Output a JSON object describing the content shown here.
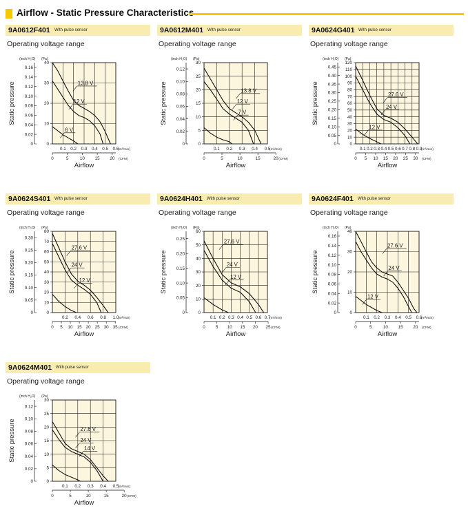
{
  "header": {
    "title": "Airflow - Static Pressure Characteristics"
  },
  "charts": [
    {
      "type": "line",
      "model": "9A0612F401",
      "sensor": "With pulse sensor",
      "subtitle": "Operating voltage range",
      "ylabel": "Static pressure",
      "xlabel": "Airflow",
      "y_unit_in": "(inch H₂O)",
      "y_unit_pa": "(Pa)",
      "x_unit_m3": "(m³/min)",
      "x_unit_cfm": "(CFM)",
      "pa_max": 40,
      "pa_ticks": [
        0,
        10,
        20,
        30,
        40
      ],
      "in_ticks": [
        "0",
        "0.02",
        "0.04",
        "0.06",
        "0.08",
        "0.10",
        "0.12",
        "0.14",
        "0.16"
      ],
      "m3_max": 0.6,
      "m3_ticks": [
        "0.1",
        "0.2",
        "0.3",
        "0.4",
        "0.5",
        "0.6"
      ],
      "cfm_max": 21.19,
      "cfm_ticks": [
        "0",
        "5",
        "10",
        "15",
        "20"
      ],
      "series": [
        {
          "name": "13.8 V",
          "x": [
            0,
            0.05,
            0.1,
            0.15,
            0.2,
            0.25,
            0.3,
            0.35,
            0.4,
            0.45,
            0.5,
            0.55
          ],
          "y": [
            40,
            36,
            31,
            26,
            21.5,
            19,
            17.5,
            16,
            14,
            11,
            6,
            0
          ]
        },
        {
          "name": "12 V",
          "x": [
            0,
            0.05,
            0.1,
            0.15,
            0.2,
            0.25,
            0.3,
            0.35,
            0.4,
            0.45,
            0.48
          ],
          "y": [
            31,
            27,
            23,
            19,
            16,
            14,
            13,
            11.5,
            9,
            5,
            0
          ]
        },
        {
          "name": "6 V",
          "x": [
            0,
            0.05,
            0.1,
            0.15,
            0.2,
            0.24
          ],
          "y": [
            8.5,
            6.5,
            4.5,
            3,
            1.5,
            0
          ]
        }
      ],
      "labels": [
        {
          "text": "13.8 V",
          "x": 0.24,
          "y": 29
        },
        {
          "text": "12 V",
          "x": 0.2,
          "y": 20
        },
        {
          "text": "6 V",
          "x": 0.12,
          "y": 6
        }
      ]
    },
    {
      "type": "line",
      "model": "9A0612M401",
      "sensor": "With pulse sensor",
      "subtitle": "Operating voltage range",
      "ylabel": "Static pressure",
      "xlabel": "Airflow",
      "y_unit_in": "(inch H₂O)",
      "y_unit_pa": "(Pa)",
      "x_unit_m3": "(m³/min)",
      "x_unit_cfm": "(CFM)",
      "pa_max": 30,
      "pa_ticks": [
        0,
        5,
        10,
        15,
        20,
        25,
        30
      ],
      "in_ticks": [
        "0",
        "0.02",
        "0.04",
        "0.06",
        "0.08",
        "0.10",
        "0.12"
      ],
      "m3_max": 0.5,
      "m3_ticks": [
        "0.1",
        "0.2",
        "0.3",
        "0.4",
        "0.5"
      ],
      "cfm_max": 17.66,
      "cfm_ticks": [
        "0",
        "5",
        "10",
        "15",
        "20"
      ],
      "series": [
        {
          "name": "13.8 V",
          "x": [
            0,
            0.05,
            0.1,
            0.15,
            0.2,
            0.25,
            0.3,
            0.35,
            0.4,
            0.45
          ],
          "y": [
            28,
            24,
            20,
            16,
            13,
            11.5,
            10,
            8,
            5,
            0
          ]
        },
        {
          "name": "12 V",
          "x": [
            0,
            0.05,
            0.1,
            0.15,
            0.2,
            0.25,
            0.3,
            0.35,
            0.39
          ],
          "y": [
            23,
            20,
            16.5,
            13,
            11,
            9.5,
            8,
            5,
            0
          ]
        },
        {
          "name": "7 V",
          "x": [
            0,
            0.05,
            0.1,
            0.15,
            0.2,
            0.22
          ],
          "y": [
            6,
            4,
            2.5,
            1.5,
            0.8,
            0
          ]
        }
      ],
      "labels": [
        {
          "text": "13.8 V",
          "x": 0.29,
          "y": 19
        },
        {
          "text": "12 V",
          "x": 0.26,
          "y": 15
        },
        {
          "text": "7 V",
          "x": 0.27,
          "y": 11
        }
      ]
    },
    {
      "type": "line",
      "model": "9A0624G401",
      "sensor": "With pulse sensor",
      "subtitle": "Operating voltage range",
      "ylabel": "Static pressure",
      "xlabel": "Airflow",
      "y_unit_in": "(inch H₂O)",
      "y_unit_pa": "(Pa)",
      "x_unit_m3": "(m³/min)",
      "x_unit_cfm": "(CFM)",
      "pa_max": 120,
      "pa_ticks": [
        0,
        10,
        20,
        30,
        40,
        50,
        60,
        70,
        80,
        90,
        100,
        110,
        120
      ],
      "in_ticks": [
        "0",
        "0.05",
        "0.10",
        "0.15",
        "0.20",
        "0.25",
        "0.30",
        "0.35",
        "0.40",
        "0.45"
      ],
      "m3_max": 0.9,
      "m3_ticks": [
        "0.1",
        "0.2",
        "0.3",
        "0.4",
        "0.5",
        "0.6",
        "0.7",
        "0.8",
        "0.9"
      ],
      "cfm_max": 31.78,
      "cfm_ticks": [
        "0",
        "5",
        "10",
        "15",
        "20",
        "25",
        "30"
      ],
      "series": [
        {
          "name": "27.6 V",
          "x": [
            0,
            0.1,
            0.2,
            0.3,
            0.4,
            0.5,
            0.6,
            0.7,
            0.8,
            0.88
          ],
          "y": [
            115,
            94,
            72,
            52,
            42,
            38,
            32,
            22,
            10,
            0
          ]
        },
        {
          "name": "24 V",
          "x": [
            0,
            0.1,
            0.2,
            0.3,
            0.4,
            0.5,
            0.6,
            0.7,
            0.77
          ],
          "y": [
            100,
            80,
            60,
            44,
            36,
            32,
            24,
            12,
            0
          ]
        },
        {
          "name": "12 V",
          "x": [
            0,
            0.1,
            0.2,
            0.3,
            0.36
          ],
          "y": [
            22,
            14,
            8,
            3,
            0
          ]
        }
      ],
      "labels": [
        {
          "text": "27.6 V",
          "x": 0.46,
          "y": 70
        },
        {
          "text": "24 V",
          "x": 0.43,
          "y": 52
        },
        {
          "text": "12 V",
          "x": 0.19,
          "y": 22
        }
      ]
    },
    {
      "type": "line",
      "model": "9A0624S401",
      "sensor": "With pulse sensor",
      "subtitle": "Operating voltage range",
      "ylabel": "Static pressure",
      "xlabel": "Airflow",
      "y_unit_in": "(inch H₂O)",
      "y_unit_pa": "(Pa)",
      "x_unit_m3": "(m³/min)",
      "x_unit_cfm": "(CFM)",
      "pa_max": 80,
      "pa_ticks": [
        0,
        10,
        20,
        30,
        40,
        50,
        60,
        70,
        80
      ],
      "in_ticks": [
        "0",
        "0.05",
        "0.10",
        "0.15",
        "0.20",
        "0.25",
        "0.30"
      ],
      "m3_max": 1.0,
      "m3_ticks": [
        "0.2",
        "0.4",
        "0.6",
        "0.8",
        "1.0"
      ],
      "cfm_max": 35.31,
      "cfm_ticks": [
        "0",
        "5",
        "10",
        "15",
        "20",
        "25",
        "30",
        "35"
      ],
      "series": [
        {
          "name": "27.6 V",
          "x": [
            0,
            0.1,
            0.2,
            0.3,
            0.4,
            0.5,
            0.6,
            0.7,
            0.8,
            0.88
          ],
          "y": [
            78,
            64,
            50,
            38,
            31,
            27,
            22,
            15,
            7,
            0
          ]
        },
        {
          "name": "24 V",
          "x": [
            0,
            0.1,
            0.2,
            0.3,
            0.4,
            0.5,
            0.6,
            0.7,
            0.77
          ],
          "y": [
            68,
            55,
            42,
            32,
            27,
            23,
            18,
            10,
            0
          ]
        },
        {
          "name": "12 V",
          "x": [
            0,
            0.1,
            0.2,
            0.3,
            0.38
          ],
          "y": [
            18,
            11,
            6,
            2,
            0
          ]
        }
      ],
      "labels": [
        {
          "text": "27.6 V",
          "x": 0.3,
          "y": 62
        },
        {
          "text": "24 V",
          "x": 0.3,
          "y": 45
        },
        {
          "text": "12 V",
          "x": 0.42,
          "y": 30
        }
      ]
    },
    {
      "type": "line",
      "model": "9A0624H401",
      "sensor": "With pulse sensor",
      "subtitle": "Operating voltage range",
      "ylabel": "Static pressure",
      "xlabel": "Airflow",
      "y_unit_in": "(inch H₂O)",
      "y_unit_pa": "(Pa)",
      "x_unit_m3": "(m³/min)",
      "x_unit_cfm": "(CFM)",
      "pa_max": 60,
      "pa_ticks": [
        0,
        10,
        20,
        30,
        40,
        50,
        60
      ],
      "in_ticks": [
        "0",
        "0.05",
        "0.10",
        "0.15",
        "0.20",
        "0.25"
      ],
      "m3_max": 0.7,
      "m3_ticks": [
        "0.1",
        "0.2",
        "0.3",
        "0.4",
        "0.5",
        "0.6",
        "0.7"
      ],
      "cfm_max": 24.72,
      "cfm_ticks": [
        "0",
        "5",
        "10",
        "15",
        "20",
        "25"
      ],
      "series": [
        {
          "name": "27.6 V",
          "x": [
            0,
            0.1,
            0.2,
            0.3,
            0.4,
            0.5,
            0.6,
            0.66
          ],
          "y": [
            53,
            40,
            28,
            22,
            19,
            14,
            6,
            0
          ]
        },
        {
          "name": "24 V",
          "x": [
            0,
            0.1,
            0.2,
            0.3,
            0.4,
            0.5,
            0.57
          ],
          "y": [
            46,
            34,
            24,
            18,
            15,
            8,
            0
          ]
        },
        {
          "name": "12 V",
          "x": [
            0,
            0.1,
            0.2,
            0.27
          ],
          "y": [
            11,
            6,
            2,
            0
          ]
        }
      ],
      "labels": [
        {
          "text": "27.6 V",
          "x": 0.22,
          "y": 51
        },
        {
          "text": "24 V",
          "x": 0.25,
          "y": 34
        },
        {
          "text": "12 V",
          "x": 0.29,
          "y": 25
        }
      ]
    },
    {
      "type": "line",
      "model": "9A0624F401",
      "sensor": "With pulse sensor",
      "subtitle": "Operating voltage range",
      "ylabel": "Static pressure",
      "xlabel": "Airflow",
      "y_unit_in": "(inch H₂O)",
      "y_unit_pa": "(Pa)",
      "x_unit_m3": "(m³/min)",
      "x_unit_cfm": "(CFM)",
      "pa_max": 40,
      "pa_ticks": [
        0,
        10,
        20,
        30,
        40
      ],
      "in_ticks": [
        "0",
        "0.02",
        "0.04",
        "0.06",
        "0.08",
        "0.10",
        "0.12",
        "0.14",
        "0.16"
      ],
      "m3_max": 0.6,
      "m3_ticks": [
        "0.1",
        "0.2",
        "0.3",
        "0.4",
        "0.5",
        "0.6"
      ],
      "cfm_max": 21.19,
      "cfm_ticks": [
        "0",
        "5",
        "10",
        "15",
        "20"
      ],
      "series": [
        {
          "name": "27.6 V",
          "x": [
            0,
            0.05,
            0.1,
            0.15,
            0.2,
            0.25,
            0.3,
            0.35,
            0.4,
            0.45,
            0.5,
            0.55,
            0.58
          ],
          "y": [
            40,
            35,
            30,
            25,
            22,
            20,
            19,
            18,
            15,
            11,
            7,
            2,
            0
          ]
        },
        {
          "name": "24 V",
          "x": [
            0,
            0.05,
            0.1,
            0.15,
            0.2,
            0.25,
            0.3,
            0.35,
            0.4,
            0.45,
            0.5,
            0.53
          ],
          "y": [
            35,
            30,
            26,
            22,
            19,
            17.5,
            16.5,
            15,
            12,
            8,
            3,
            0
          ]
        },
        {
          "name": "12 V",
          "x": [
            0,
            0.05,
            0.1,
            0.15,
            0.2,
            0.25
          ],
          "y": [
            8,
            6,
            4,
            2.5,
            1,
            0
          ]
        }
      ],
      "labels": [
        {
          "text": "27.6 V",
          "x": 0.3,
          "y": 32
        },
        {
          "text": "24 V",
          "x": 0.31,
          "y": 21
        },
        {
          "text": "12 V",
          "x": 0.11,
          "y": 7
        }
      ]
    },
    {
      "type": "line",
      "model": "9A0624M401",
      "sensor": "With pulse sensor",
      "subtitle": "Operating voltage range",
      "ylabel": "Static pressure",
      "xlabel": "Airflow",
      "y_unit_in": "(inch H₂O)",
      "y_unit_pa": "(Pa)",
      "x_unit_m3": "(m³/min)",
      "x_unit_cfm": "(CFM)",
      "pa_max": 30,
      "pa_ticks": [
        0,
        5,
        10,
        15,
        20,
        25,
        30
      ],
      "in_ticks": [
        "0",
        "0.02",
        "0.04",
        "0.06",
        "0.08",
        "0.10",
        "0.12"
      ],
      "m3_max": 0.5,
      "m3_ticks": [
        "0.1",
        "0.2",
        "0.3",
        "0.4",
        "0.5"
      ],
      "cfm_max": 17.66,
      "cfm_ticks": [
        "0",
        "5",
        "10",
        "15",
        "20"
      ],
      "series": [
        {
          "name": "27.6 V",
          "x": [
            0,
            0.05,
            0.1,
            0.15,
            0.2,
            0.25,
            0.3,
            0.35,
            0.4,
            0.44
          ],
          "y": [
            22,
            18,
            14,
            12,
            11,
            10,
            8,
            5,
            2,
            0
          ]
        },
        {
          "name": "24 V",
          "x": [
            0,
            0.05,
            0.1,
            0.15,
            0.2,
            0.25,
            0.3,
            0.35,
            0.4
          ],
          "y": [
            19,
            15.5,
            12.5,
            11,
            10,
            9,
            7,
            4,
            0
          ]
        },
        {
          "name": "14 V",
          "x": [
            0,
            0.05,
            0.1,
            0.15,
            0.2,
            0.22
          ],
          "y": [
            6,
            4,
            2.5,
            1.5,
            0.5,
            0
          ]
        }
      ],
      "labels": [
        {
          "text": "27.6 V",
          "x": 0.22,
          "y": 18.5
        },
        {
          "text": "24 V",
          "x": 0.22,
          "y": 14.5
        },
        {
          "text": "14 V",
          "x": 0.25,
          "y": 11.5
        }
      ]
    }
  ]
}
